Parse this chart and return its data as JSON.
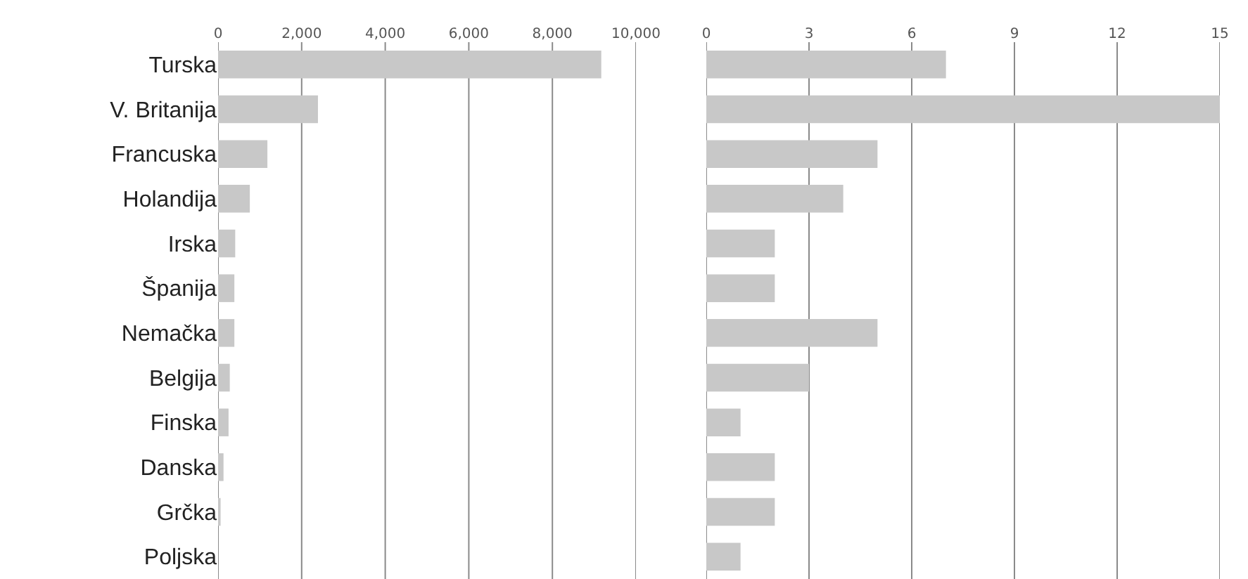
{
  "chart_data": [
    {
      "type": "bar",
      "orientation": "horizontal",
      "categories": [
        "Turska",
        "V. Britanija",
        "Francuska",
        "Holandija",
        "Irska",
        "Španija",
        "Nemačka",
        "Belgija",
        "Finska",
        "Danska",
        "Grčka",
        "Poljska"
      ],
      "values": [
        9170,
        2390,
        1180,
        760,
        410,
        390,
        390,
        280,
        250,
        130,
        60,
        null
      ],
      "color": "#c8c8c8",
      "xlim": [
        0,
        10000
      ],
      "xticks": [
        0,
        {
          "value": 2000,
          "label": "2,000"
        },
        {
          "value": 4000,
          "label": "4,000"
        },
        {
          "value": 6000,
          "label": "6,000"
        },
        {
          "value": 8000,
          "label": "8,000"
        },
        {
          "value": 10000,
          "label": "10,000"
        }
      ],
      "grid": "x"
    },
    {
      "type": "bar",
      "orientation": "horizontal",
      "categories": [
        null,
        null,
        null,
        null,
        null,
        null,
        null,
        null,
        null,
        null,
        null,
        null
      ],
      "values": [
        7,
        15,
        5,
        4,
        2,
        2,
        5,
        3,
        1,
        2,
        2,
        1
      ],
      "color": "#c8c8c8",
      "xlim": [
        0,
        15
      ],
      "xticks": [
        0,
        3,
        6,
        9,
        12,
        15
      ],
      "grid": "x",
      "tick_labels": "x"
    }
  ]
}
